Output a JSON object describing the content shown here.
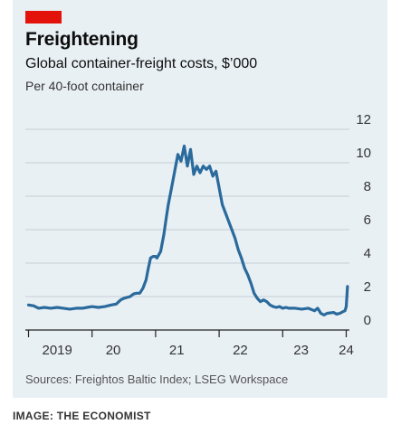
{
  "header": {
    "title": "Freightening",
    "subtitle": "Global container-freight costs, $’000",
    "unit": "Per 40-foot container"
  },
  "footer": {
    "source": "Sources: Freightos Baltic Index; LSEG Workspace",
    "credit": "IMAGE: THE ECONOMIST"
  },
  "colors": {
    "accent": "#e3120b",
    "line": "#2a6a9c",
    "background": "#e9f0f4",
    "grid": "#c5ced6"
  },
  "chart_data": {
    "type": "line",
    "title": "Freightening",
    "subtitle": "Global container-freight costs, $’000",
    "ylabel": "Per 40-foot container",
    "ylim": [
      0,
      12
    ],
    "yticks": [
      0,
      2,
      4,
      6,
      8,
      10,
      12
    ],
    "xlim": [
      2018.95,
      2024.05
    ],
    "xticks": [
      {
        "value": 2019,
        "label": "2019"
      },
      {
        "value": 2020,
        "label": "20"
      },
      {
        "value": 2021,
        "label": "21"
      },
      {
        "value": 2022,
        "label": "22"
      },
      {
        "value": 2023,
        "label": "23"
      },
      {
        "value": 2024,
        "label": "24"
      }
    ],
    "grid": true,
    "series": [
      {
        "x": [
          2019.0,
          2019.08,
          2019.16,
          2019.25,
          2019.35,
          2019.45,
          2019.55,
          2019.65,
          2019.75,
          2019.85,
          2019.92,
          2020.0,
          2020.1,
          2020.2,
          2020.3,
          2020.38,
          2020.45,
          2020.5,
          2020.55,
          2020.6,
          2020.65,
          2020.7,
          2020.75,
          2020.8,
          2020.85,
          2020.88,
          2020.92,
          2020.96,
          2021.0,
          2021.02,
          2021.05,
          2021.08,
          2021.1,
          2021.13,
          2021.16,
          2021.2,
          2021.25,
          2021.3,
          2021.35,
          2021.4,
          2021.45,
          2021.5,
          2021.55,
          2021.6,
          2021.65,
          2021.7,
          2021.75,
          2021.8,
          2021.85,
          2021.9,
          2021.95,
          2022.0,
          2022.05,
          2022.1,
          2022.15,
          2022.2,
          2022.25,
          2022.3,
          2022.35,
          2022.4,
          2022.45,
          2022.5,
          2022.55,
          2022.6,
          2022.65,
          2022.7,
          2022.75,
          2022.8,
          2022.85,
          2022.9,
          2022.95,
          2023.0,
          2023.05,
          2023.1,
          2023.2,
          2023.3,
          2023.4,
          2023.5,
          2023.55,
          2023.6,
          2023.65,
          2023.7,
          2023.8,
          2023.85,
          2023.9,
          2023.95,
          2023.98,
          2024.0,
          2024.01,
          2024.02
        ],
        "y": [
          1.5,
          1.45,
          1.3,
          1.35,
          1.3,
          1.35,
          1.3,
          1.25,
          1.3,
          1.3,
          1.35,
          1.4,
          1.35,
          1.4,
          1.5,
          1.55,
          1.8,
          1.9,
          1.95,
          2.0,
          2.15,
          2.2,
          2.2,
          2.5,
          3.0,
          3.6,
          4.3,
          4.4,
          4.4,
          4.3,
          4.5,
          4.7,
          5.1,
          5.7,
          6.5,
          7.5,
          8.5,
          9.5,
          10.5,
          10.1,
          11.0,
          9.8,
          10.8,
          9.3,
          9.8,
          9.4,
          9.8,
          9.6,
          9.8,
          9.2,
          9.5,
          8.5,
          7.5,
          7.0,
          6.5,
          6.0,
          5.5,
          4.8,
          4.3,
          3.7,
          3.3,
          2.8,
          2.2,
          1.9,
          1.7,
          1.8,
          1.7,
          1.5,
          1.4,
          1.35,
          1.4,
          1.3,
          1.35,
          1.3,
          1.3,
          1.25,
          1.3,
          1.15,
          1.3,
          1.0,
          0.9,
          1.0,
          1.05,
          0.95,
          1.0,
          1.1,
          1.15,
          1.4,
          2.0,
          2.6
        ]
      }
    ]
  }
}
